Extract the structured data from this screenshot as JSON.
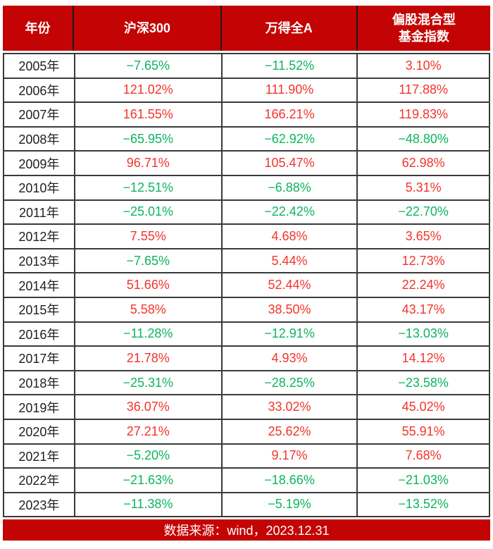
{
  "colors": {
    "header_bg": "#c40404",
    "footer_bg": "#c40404",
    "positive_value": "#f3342b",
    "negative_value": "#0cb460",
    "grid_border": "#3a3a3a"
  },
  "table": {
    "header": [
      "年份",
      "沪深300",
      "万得全A",
      "偏股混合型\n基金指数"
    ],
    "rows": [
      {
        "year": "2005年",
        "values": [
          "−7.65%",
          "−11.52%",
          "3.10%"
        ]
      },
      {
        "year": "2006年",
        "values": [
          "121.02%",
          "111.90%",
          "117.88%"
        ]
      },
      {
        "year": "2007年",
        "values": [
          "161.55%",
          "166.21%",
          "119.83%"
        ]
      },
      {
        "year": "2008年",
        "values": [
          "−65.95%",
          "−62.92%",
          "−48.80%"
        ]
      },
      {
        "year": "2009年",
        "values": [
          "96.71%",
          "105.47%",
          "62.98%"
        ]
      },
      {
        "year": "2010年",
        "values": [
          "−12.51%",
          "−6.88%",
          "5.31%"
        ]
      },
      {
        "year": "2011年",
        "values": [
          "−25.01%",
          "−22.42%",
          "−22.70%"
        ]
      },
      {
        "year": "2012年",
        "values": [
          "7.55%",
          "4.68%",
          "3.65%"
        ]
      },
      {
        "year": "2013年",
        "values": [
          "−7.65%",
          "5.44%",
          "12.73%"
        ]
      },
      {
        "year": "2014年",
        "values": [
          "51.66%",
          "52.44%",
          "22.24%"
        ]
      },
      {
        "year": "2015年",
        "values": [
          "5.58%",
          "38.50%",
          "43.17%"
        ]
      },
      {
        "year": "2016年",
        "values": [
          "−11.28%",
          "−12.91%",
          "−13.03%"
        ]
      },
      {
        "year": "2017年",
        "values": [
          "21.78%",
          "4.93%",
          "14.12%"
        ]
      },
      {
        "year": "2018年",
        "values": [
          "−25.31%",
          "−28.25%",
          "−23.58%"
        ]
      },
      {
        "year": "2019年",
        "values": [
          "36.07%",
          "33.02%",
          "45.02%"
        ]
      },
      {
        "year": "2020年",
        "values": [
          "27.21%",
          "25.62%",
          "55.91%"
        ]
      },
      {
        "year": "2021年",
        "values": [
          "−5.20%",
          "9.17%",
          "7.68%"
        ]
      },
      {
        "year": "2022年",
        "values": [
          "−21.63%",
          "−18.66%",
          "−21.03%"
        ]
      },
      {
        "year": "2023年",
        "values": [
          "−11.38%",
          "−5.19%",
          "−13.52%"
        ]
      }
    ]
  },
  "footer": {
    "text": "数据来源：wind，2023.12.31"
  },
  "chart_data": {
    "type": "table",
    "title": "",
    "categories": [
      "2005年",
      "2006年",
      "2007年",
      "2008年",
      "2009年",
      "2010年",
      "2011年",
      "2012年",
      "2013年",
      "2014年",
      "2015年",
      "2016年",
      "2017年",
      "2018年",
      "2019年",
      "2020年",
      "2021年",
      "2022年",
      "2023年"
    ],
    "series": [
      {
        "name": "沪深300",
        "values": [
          -7.65,
          121.02,
          161.55,
          -65.95,
          96.71,
          -12.51,
          -25.01,
          7.55,
          -7.65,
          51.66,
          5.58,
          -11.28,
          21.78,
          -25.31,
          36.07,
          27.21,
          -5.2,
          -21.63,
          -11.38
        ]
      },
      {
        "name": "万得全A",
        "values": [
          -11.52,
          111.9,
          166.21,
          -62.92,
          105.47,
          -6.88,
          -22.42,
          4.68,
          5.44,
          52.44,
          38.5,
          -12.91,
          4.93,
          -28.25,
          33.02,
          25.62,
          9.17,
          -18.66,
          -5.19
        ]
      },
      {
        "name": "偏股混合型基金指数",
        "values": [
          3.1,
          117.88,
          119.83,
          -48.8,
          62.98,
          5.31,
          -22.7,
          3.65,
          12.73,
          22.24,
          43.17,
          -13.03,
          14.12,
          -23.58,
          45.02,
          55.91,
          7.68,
          -21.03,
          -13.52
        ]
      }
    ],
    "unit": "%",
    "value_color_rule": "positive values shown red, negative values shown green",
    "source_note": "数据来源：wind，2023.12.31"
  }
}
